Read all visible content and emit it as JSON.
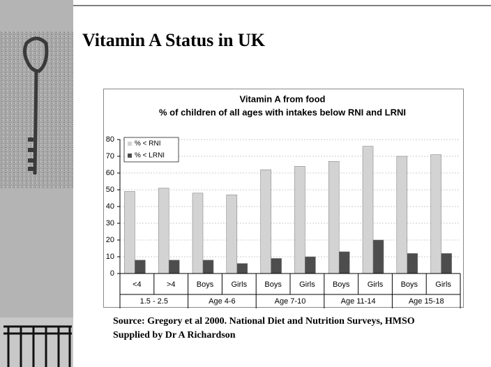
{
  "slide": {
    "title": "Vitamin A Status in UK",
    "source": [
      "Source: Gregory et al 2000. National Diet and Nutrition Surveys, HMSO",
      "Supplied by Dr A Richardson"
    ]
  },
  "chart_data": {
    "type": "bar",
    "title": "Vitamin A from food",
    "subtitle": "% of children of all ages with intakes below RNI and LRNI",
    "categories": [
      "<4",
      ">4",
      "Boys",
      "Girls",
      "Boys",
      "Girls",
      "Boys",
      "Girls",
      "Boys",
      "Girls"
    ],
    "groups": [
      "1.5 - 2.5",
      "Age 4-6",
      "Age 7-10",
      "Age 11-14",
      "Age 15-18"
    ],
    "series": [
      {
        "name": "% < RNI",
        "color": "#d3d3d3",
        "values": [
          49,
          51,
          48,
          47,
          62,
          64,
          67,
          76,
          70,
          71
        ]
      },
      {
        "name": "% < LRNI",
        "color": "#4d4d4d",
        "values": [
          8,
          8,
          8,
          6,
          9,
          10,
          13,
          20,
          12,
          12
        ]
      }
    ],
    "ylim": [
      0,
      80
    ],
    "yticks": [
      0,
      10,
      20,
      30,
      40,
      50,
      60,
      70,
      80
    ],
    "grid": true,
    "legend": "upper left"
  }
}
